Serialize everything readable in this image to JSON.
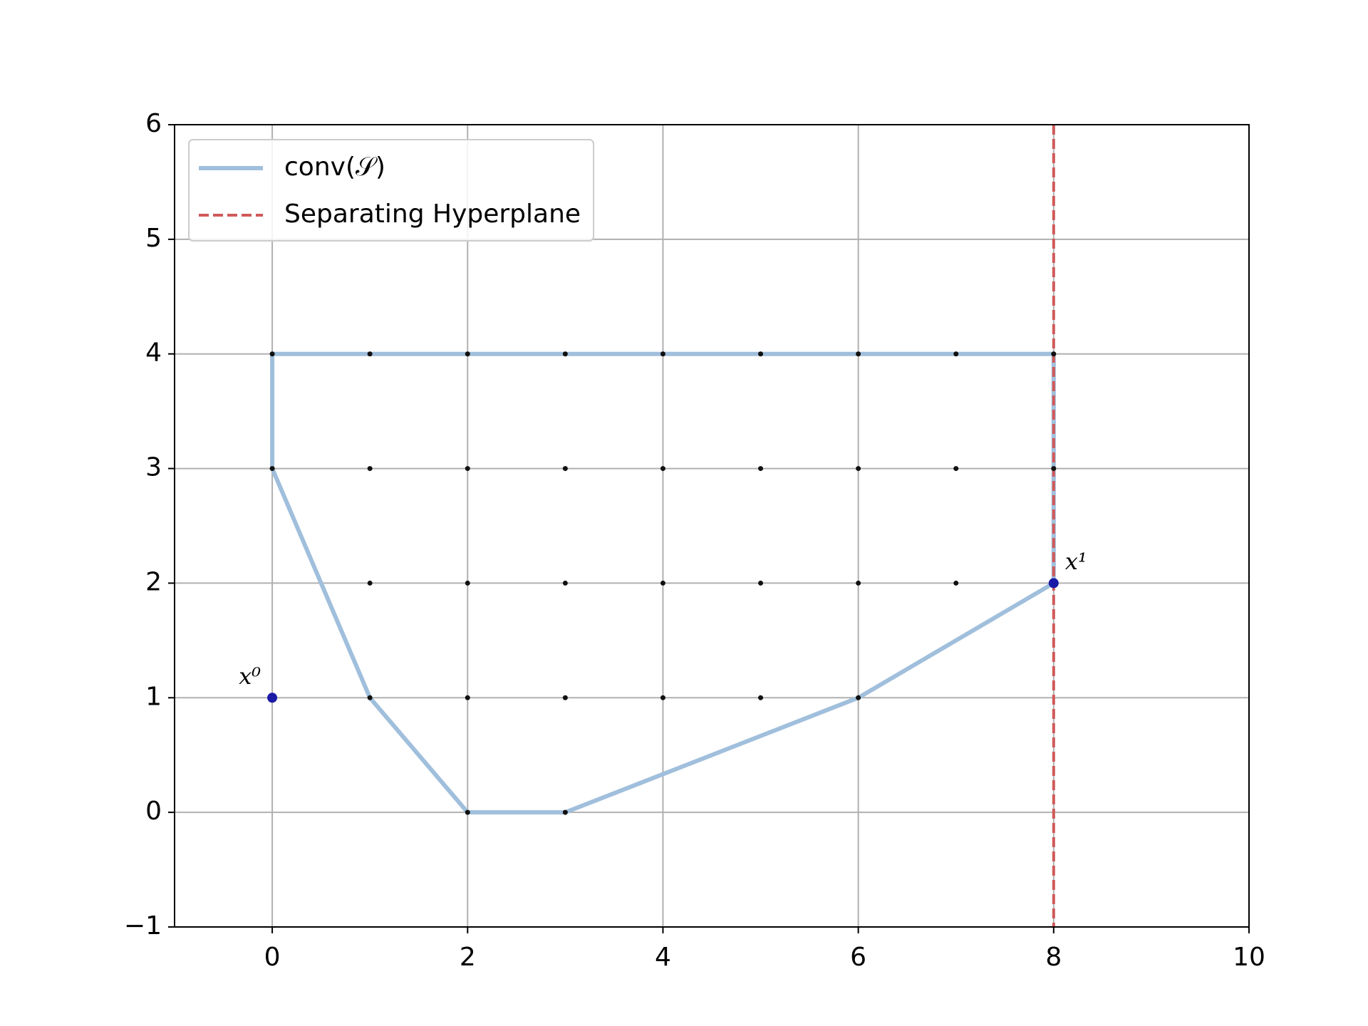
{
  "chart_data": {
    "type": "scatter",
    "xlim": [
      -1,
      10
    ],
    "ylim": [
      -1,
      6
    ],
    "xticks": [
      0,
      2,
      4,
      6,
      8,
      10
    ],
    "yticks": [
      {
        "value": -1,
        "label": "−1"
      },
      0,
      1,
      2,
      3,
      4,
      5,
      6
    ],
    "grid": true,
    "legend": "upper left",
    "series": [
      {
        "name": "conv(𝒮)",
        "kind": "line",
        "color": "#a0bfdc",
        "x": [
          0,
          8,
          8,
          6,
          3,
          2,
          1,
          0,
          0
        ],
        "y": [
          4,
          4,
          2,
          1,
          0,
          0,
          1,
          3,
          4
        ]
      },
      {
        "name": "Separating Hyperplane",
        "kind": "vline",
        "color": "#d05a5a",
        "x": 8
      },
      {
        "kind": "points",
        "color": "#111111",
        "x": [
          0,
          1,
          2,
          3,
          4,
          5,
          6,
          7,
          8,
          0,
          1,
          2,
          3,
          4,
          5,
          6,
          7,
          8,
          1,
          2,
          3,
          4,
          5,
          6,
          7,
          1,
          2,
          3,
          4,
          5,
          6,
          2,
          3
        ],
        "y": [
          4,
          4,
          4,
          4,
          4,
          4,
          4,
          4,
          4,
          3,
          3,
          3,
          3,
          3,
          3,
          3,
          3,
          3,
          2,
          2,
          2,
          2,
          2,
          2,
          2,
          1,
          1,
          1,
          1,
          1,
          1,
          0,
          0
        ]
      },
      {
        "kind": "points",
        "color": "#1a1aa6",
        "x": [
          0,
          8
        ],
        "y": [
          1,
          2
        ],
        "point_labels": [
          "x⁰",
          "x¹"
        ]
      }
    ]
  }
}
